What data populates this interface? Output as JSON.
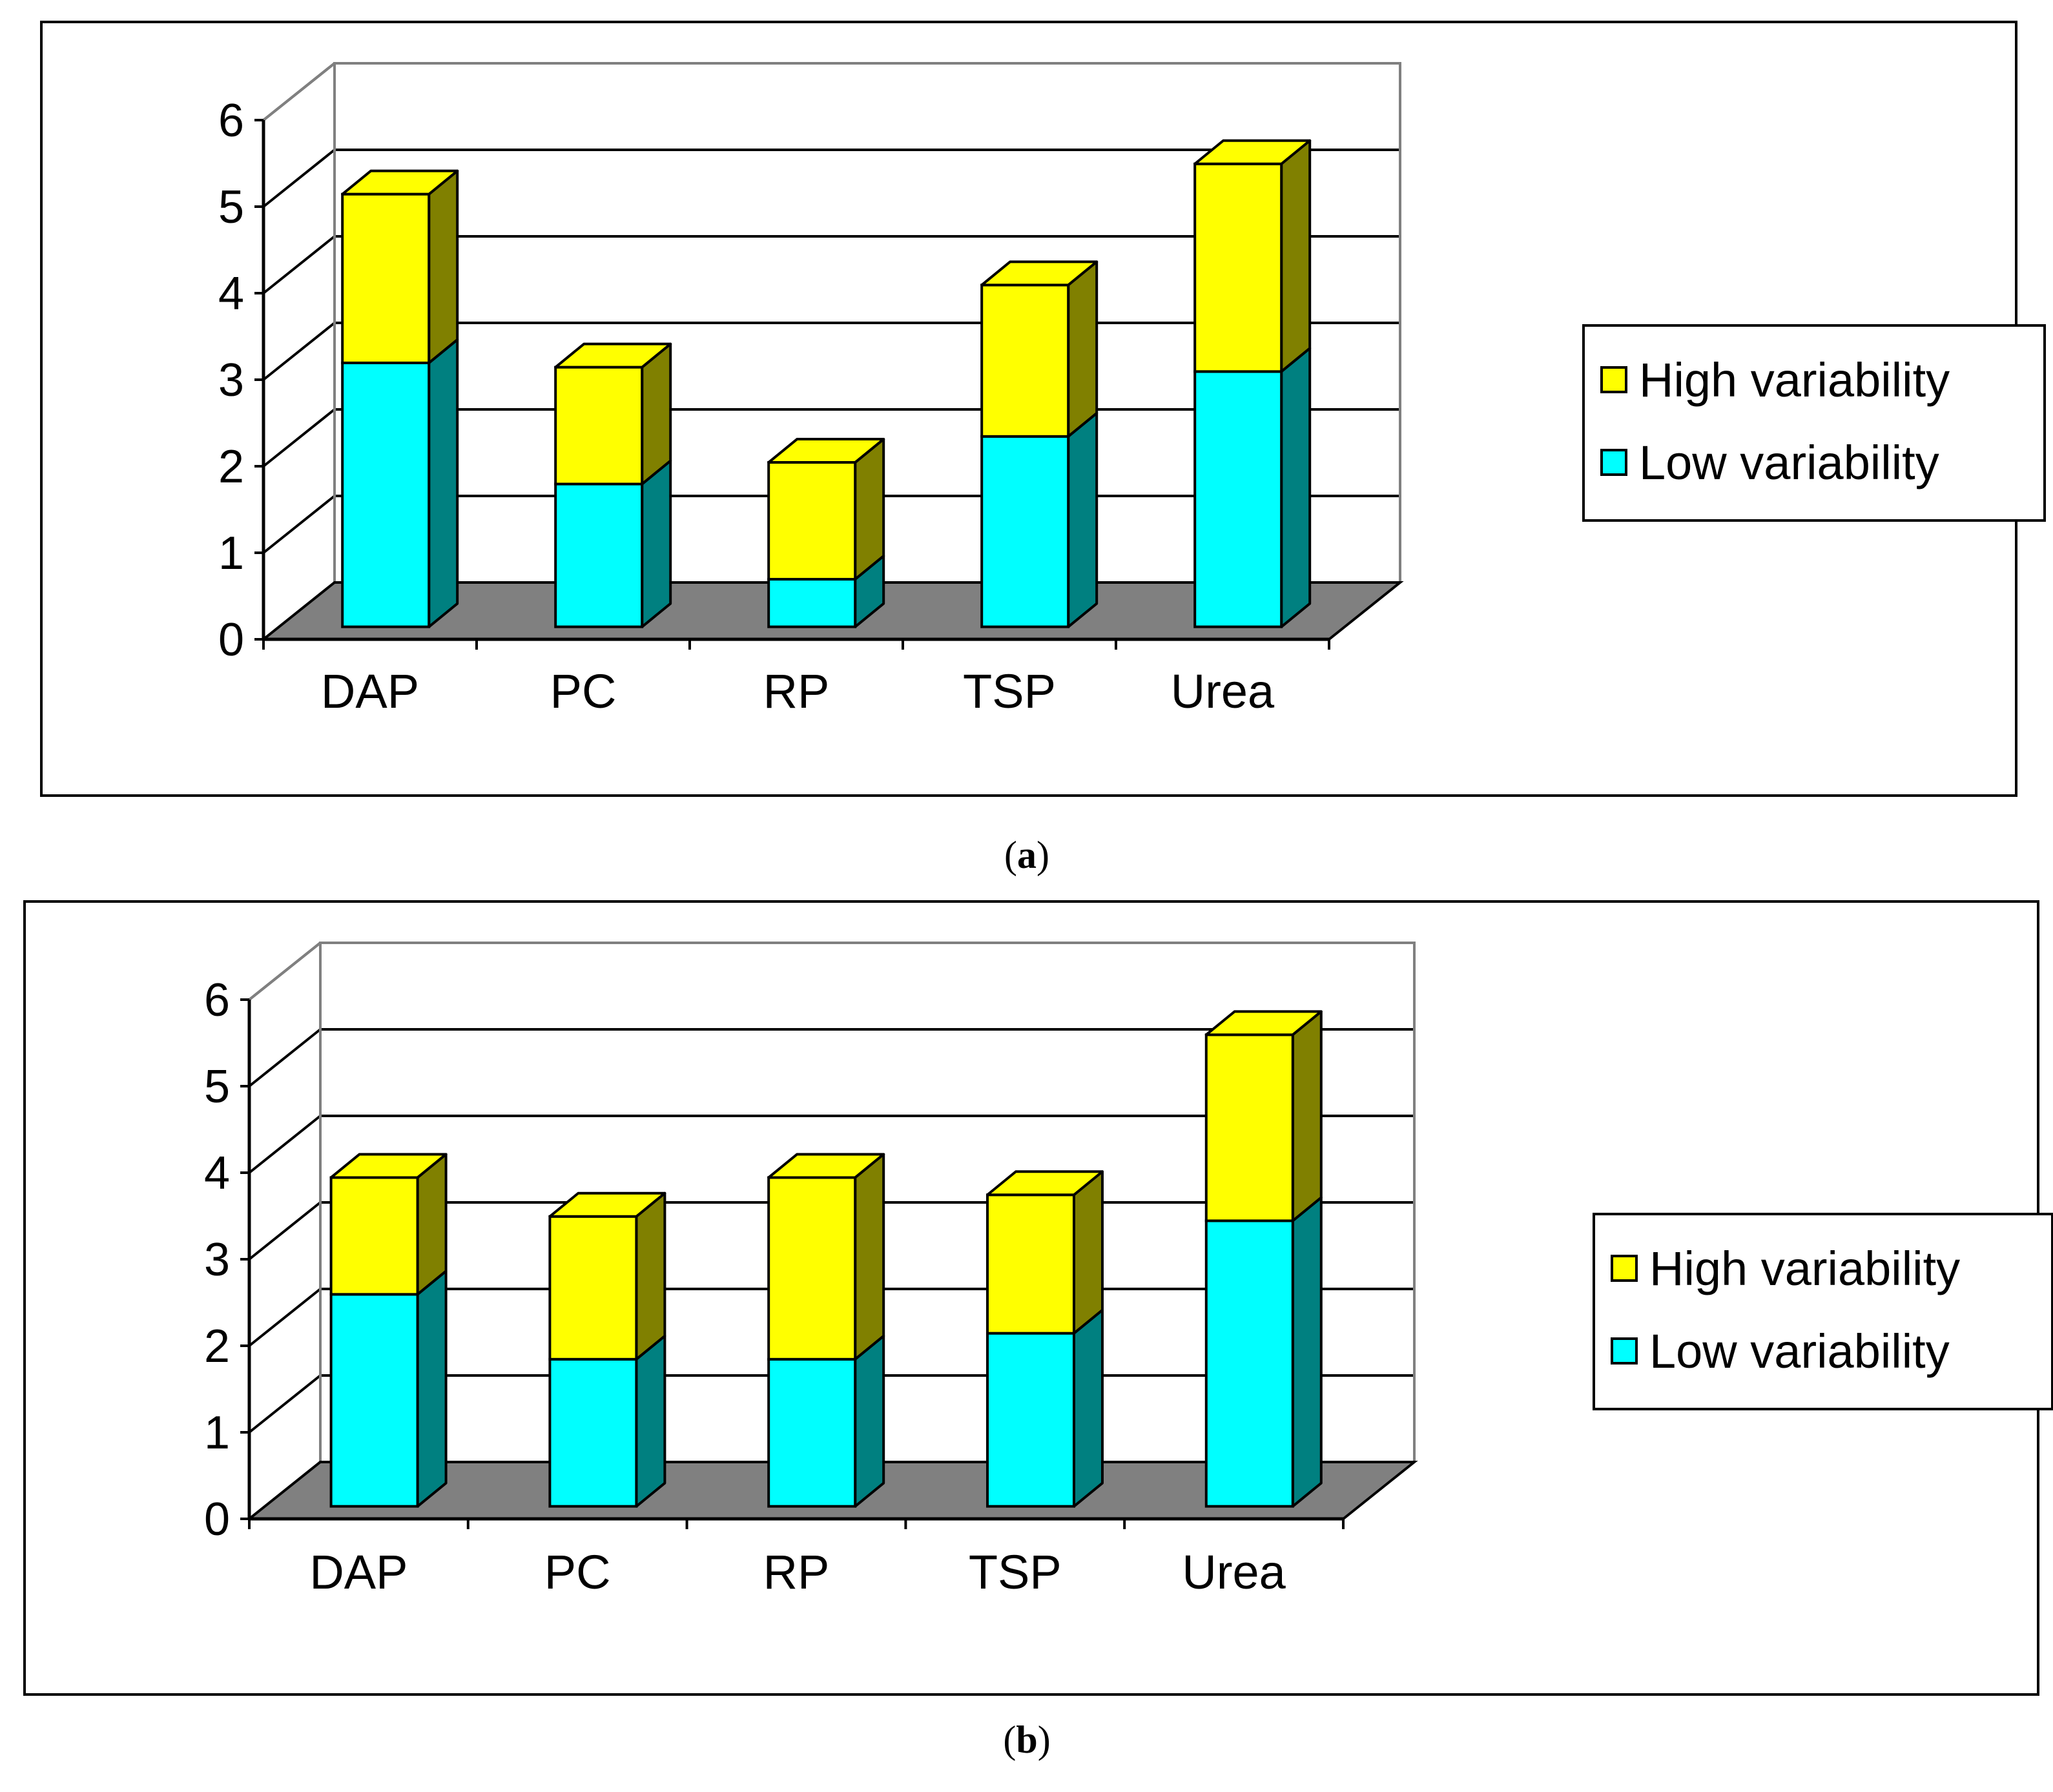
{
  "colors": {
    "high": "#ffff00",
    "high_side": "#808000",
    "low": "#00ffff",
    "low_side": "#008080",
    "floor": "#808080",
    "wall_line": "#808080"
  },
  "legend": {
    "high_label": "High variability",
    "low_label": "Low variability"
  },
  "captions": {
    "a": "a",
    "b": "b"
  },
  "chart_data": [
    {
      "id": "a",
      "type": "bar",
      "stacked": true,
      "categories": [
        "DAP",
        "PC",
        "RP",
        "TSP",
        "Urea"
      ],
      "series": [
        {
          "name": "Low variability",
          "values": [
            3.05,
            1.65,
            0.55,
            2.2,
            2.95
          ]
        },
        {
          "name": "High variability",
          "values": [
            1.95,
            1.35,
            1.35,
            1.75,
            2.4
          ]
        }
      ],
      "ylim": [
        0,
        6
      ],
      "yticks": [
        "0",
        "1",
        "2",
        "3",
        "4",
        "5",
        "6"
      ],
      "title": "",
      "xlabel": "",
      "ylabel": "",
      "legend_position": "right"
    },
    {
      "id": "b",
      "type": "bar",
      "stacked": true,
      "categories": [
        "DAP",
        "PC",
        "RP",
        "TSP",
        "Urea"
      ],
      "series": [
        {
          "name": "Low variability",
          "values": [
            2.45,
            1.7,
            1.7,
            2.0,
            3.3
          ]
        },
        {
          "name": "High variability",
          "values": [
            1.35,
            1.65,
            2.1,
            1.6,
            2.15
          ]
        }
      ],
      "ylim": [
        0,
        6
      ],
      "yticks": [
        "0",
        "1",
        "2",
        "3",
        "4",
        "5",
        "6"
      ],
      "title": "",
      "xlabel": "",
      "ylabel": "",
      "legend_position": "right"
    }
  ]
}
